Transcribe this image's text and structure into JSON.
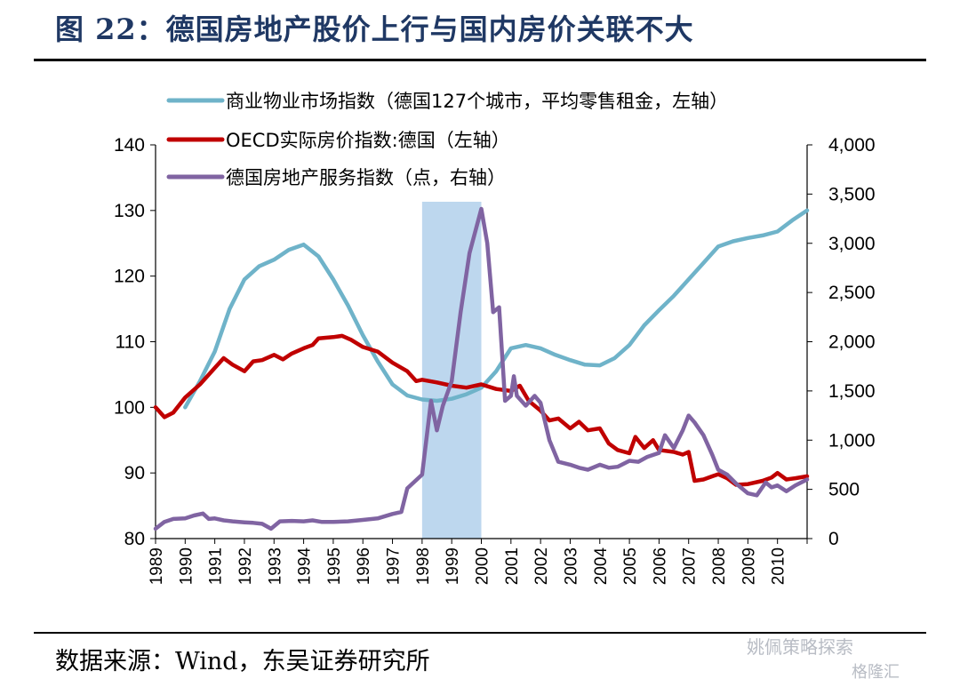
{
  "title": "图 22：德国房地产股价上行与国内房价关联不大",
  "source": "数据来源：Wind，东吴证券研究所",
  "watermark": "姚佩策略探索",
  "watermark2": "格隆汇",
  "chart_data": {
    "type": "line",
    "x_ticks": [
      "1989",
      "1990",
      "1991",
      "1992",
      "1993",
      "1994",
      "1995",
      "1996",
      "1997",
      "1998",
      "1999",
      "2000",
      "2001",
      "2002",
      "2003",
      "2004",
      "2005",
      "2006",
      "2007",
      "2008",
      "2009",
      "2010"
    ],
    "left_axis": {
      "min": 80,
      "max": 140,
      "ticks": [
        80,
        90,
        100,
        110,
        120,
        130,
        140
      ]
    },
    "right_axis": {
      "min": 0,
      "max": 4000,
      "ticks": [
        "0",
        "500",
        "1,000",
        "1,500",
        "2,000",
        "2,500",
        "3,000",
        "3,500",
        "4,000"
      ],
      "tick_values": [
        0,
        500,
        1000,
        1500,
        2000,
        2500,
        3000,
        3500,
        4000
      ]
    },
    "shaded_region": {
      "x_start": 1998.0,
      "x_end": 2000.0,
      "color": "#bdd7ee"
    },
    "grid": false,
    "legend_position": "top-left",
    "series": [
      {
        "name": "商业物业市场指数（德国127个城市，平均零售租金，左轴）",
        "axis": "left",
        "color": "#6fb3c9",
        "points": [
          [
            1990.0,
            100.0
          ],
          [
            1990.5,
            104.0
          ],
          [
            1991.0,
            108.5
          ],
          [
            1991.5,
            115.0
          ],
          [
            1992.0,
            119.5
          ],
          [
            1992.5,
            121.5
          ],
          [
            1993.0,
            122.5
          ],
          [
            1993.5,
            124.0
          ],
          [
            1994.0,
            124.8
          ],
          [
            1994.5,
            123.0
          ],
          [
            1995.0,
            119.5
          ],
          [
            1995.5,
            115.5
          ],
          [
            1996.0,
            111.0
          ],
          [
            1996.5,
            107.0
          ],
          [
            1997.0,
            103.5
          ],
          [
            1997.5,
            101.8
          ],
          [
            1998.0,
            101.2
          ],
          [
            1998.5,
            101.0
          ],
          [
            1999.0,
            101.3
          ],
          [
            1999.5,
            102.0
          ],
          [
            2000.0,
            103.0
          ],
          [
            2000.5,
            105.5
          ],
          [
            2001.0,
            109.0
          ],
          [
            2001.5,
            109.5
          ],
          [
            2002.0,
            109.0
          ],
          [
            2002.5,
            108.0
          ],
          [
            2003.0,
            107.2
          ],
          [
            2003.5,
            106.5
          ],
          [
            2004.0,
            106.4
          ],
          [
            2004.5,
            107.5
          ],
          [
            2005.0,
            109.5
          ],
          [
            2005.5,
            112.5
          ],
          [
            2006.0,
            114.8
          ],
          [
            2006.5,
            117.0
          ],
          [
            2007.0,
            119.5
          ],
          [
            2007.5,
            122.0
          ],
          [
            2008.0,
            124.5
          ],
          [
            2008.5,
            125.3
          ],
          [
            2009.0,
            125.8
          ],
          [
            2009.5,
            126.2
          ],
          [
            2010.0,
            126.8
          ],
          [
            2010.5,
            128.5
          ],
          [
            2011.0,
            130.0
          ]
        ]
      },
      {
        "name": "OECD实际房价指数:德国（左轴）",
        "axis": "left",
        "color": "#c00000",
        "points": [
          [
            1989.0,
            100.0
          ],
          [
            1989.3,
            98.5
          ],
          [
            1989.6,
            99.2
          ],
          [
            1990.0,
            101.5
          ],
          [
            1990.5,
            103.5
          ],
          [
            1991.0,
            106.0
          ],
          [
            1991.3,
            107.5
          ],
          [
            1991.6,
            106.5
          ],
          [
            1992.0,
            105.5
          ],
          [
            1992.3,
            107.0
          ],
          [
            1992.6,
            107.2
          ],
          [
            1993.0,
            108.0
          ],
          [
            1993.3,
            107.3
          ],
          [
            1993.6,
            108.2
          ],
          [
            1994.0,
            109.0
          ],
          [
            1994.3,
            109.5
          ],
          [
            1994.5,
            110.5
          ],
          [
            1995.0,
            110.7
          ],
          [
            1995.3,
            110.9
          ],
          [
            1995.6,
            110.3
          ],
          [
            1996.0,
            109.2
          ],
          [
            1996.5,
            108.5
          ],
          [
            1997.0,
            106.8
          ],
          [
            1997.5,
            105.5
          ],
          [
            1997.8,
            104.0
          ],
          [
            1998.0,
            104.2
          ],
          [
            1998.5,
            103.8
          ],
          [
            1999.0,
            103.3
          ],
          [
            1999.5,
            103.0
          ],
          [
            2000.0,
            103.5
          ],
          [
            2000.5,
            102.8
          ],
          [
            2001.0,
            102.5
          ],
          [
            2001.3,
            103.3
          ],
          [
            2001.6,
            101.0
          ],
          [
            2002.0,
            99.5
          ],
          [
            2002.3,
            98.0
          ],
          [
            2002.6,
            98.3
          ],
          [
            2003.0,
            96.8
          ],
          [
            2003.3,
            97.8
          ],
          [
            2003.6,
            96.5
          ],
          [
            2004.0,
            96.8
          ],
          [
            2004.3,
            94.5
          ],
          [
            2004.6,
            93.5
          ],
          [
            2005.0,
            93.0
          ],
          [
            2005.2,
            95.5
          ],
          [
            2005.5,
            93.8
          ],
          [
            2005.8,
            95.0
          ],
          [
            2006.0,
            93.5
          ],
          [
            2006.5,
            93.2
          ],
          [
            2006.8,
            92.8
          ],
          [
            2007.0,
            93.2
          ],
          [
            2007.2,
            88.8
          ],
          [
            2007.5,
            89.0
          ],
          [
            2007.8,
            89.5
          ],
          [
            2008.0,
            89.8
          ],
          [
            2008.3,
            89.2
          ],
          [
            2008.6,
            88.2
          ],
          [
            2009.0,
            88.3
          ],
          [
            2009.5,
            88.8
          ],
          [
            2009.8,
            89.3
          ],
          [
            2010.0,
            90.0
          ],
          [
            2010.3,
            89.0
          ],
          [
            2010.6,
            89.2
          ],
          [
            2011.0,
            89.5
          ]
        ]
      },
      {
        "name": "德国房地产服务指数（点，右轴）",
        "axis": "right",
        "color": "#8064a2",
        "points": [
          [
            1989.0,
            100
          ],
          [
            1989.3,
            170
          ],
          [
            1989.6,
            200
          ],
          [
            1990.0,
            205
          ],
          [
            1990.3,
            235
          ],
          [
            1990.6,
            255
          ],
          [
            1990.8,
            200
          ],
          [
            1991.0,
            205
          ],
          [
            1991.3,
            185
          ],
          [
            1991.6,
            175
          ],
          [
            1992.0,
            165
          ],
          [
            1992.3,
            160
          ],
          [
            1992.6,
            150
          ],
          [
            1992.9,
            100
          ],
          [
            1993.2,
            175
          ],
          [
            1993.6,
            180
          ],
          [
            1994.0,
            175
          ],
          [
            1994.3,
            185
          ],
          [
            1994.6,
            170
          ],
          [
            1995.0,
            170
          ],
          [
            1995.5,
            175
          ],
          [
            1996.0,
            190
          ],
          [
            1996.5,
            205
          ],
          [
            1997.0,
            250
          ],
          [
            1997.3,
            270
          ],
          [
            1997.5,
            510
          ],
          [
            1998.0,
            650
          ],
          [
            1998.3,
            1400
          ],
          [
            1998.5,
            1100
          ],
          [
            1998.7,
            1350
          ],
          [
            1999.0,
            1600
          ],
          [
            1999.3,
            2300
          ],
          [
            1999.6,
            2900
          ],
          [
            2000.0,
            3350
          ],
          [
            2000.2,
            3000
          ],
          [
            2000.4,
            2300
          ],
          [
            2000.6,
            2350
          ],
          [
            2000.8,
            1400
          ],
          [
            2001.0,
            1450
          ],
          [
            2001.1,
            1650
          ],
          [
            2001.2,
            1450
          ],
          [
            2001.5,
            1350
          ],
          [
            2001.8,
            1450
          ],
          [
            2002.0,
            1380
          ],
          [
            2002.3,
            1000
          ],
          [
            2002.6,
            780
          ],
          [
            2003.0,
            750
          ],
          [
            2003.3,
            720
          ],
          [
            2003.6,
            700
          ],
          [
            2004.0,
            750
          ],
          [
            2004.3,
            720
          ],
          [
            2004.6,
            730
          ],
          [
            2005.0,
            790
          ],
          [
            2005.3,
            780
          ],
          [
            2005.6,
            830
          ],
          [
            2006.0,
            870
          ],
          [
            2006.2,
            1050
          ],
          [
            2006.5,
            920
          ],
          [
            2006.8,
            1100
          ],
          [
            2007.0,
            1250
          ],
          [
            2007.2,
            1180
          ],
          [
            2007.5,
            1050
          ],
          [
            2007.8,
            850
          ],
          [
            2008.0,
            700
          ],
          [
            2008.3,
            650
          ],
          [
            2008.6,
            560
          ],
          [
            2009.0,
            460
          ],
          [
            2009.3,
            440
          ],
          [
            2009.6,
            570
          ],
          [
            2009.8,
            520
          ],
          [
            2010.0,
            540
          ],
          [
            2010.3,
            480
          ],
          [
            2010.6,
            540
          ],
          [
            2011.0,
            600
          ]
        ]
      }
    ]
  }
}
